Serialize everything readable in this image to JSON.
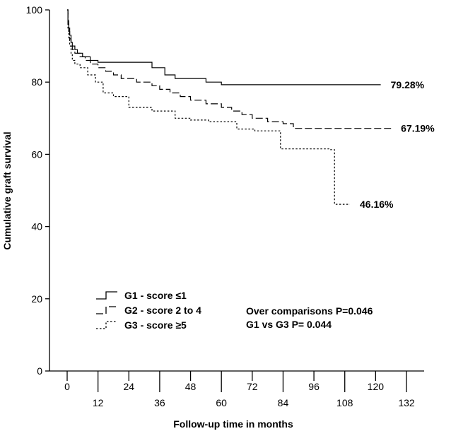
{
  "chart_data": {
    "type": "line",
    "subtype": "kaplan-meier step",
    "title": "",
    "xlabel": "Follow-up time in months",
    "ylabel": "Cumulative graft survival",
    "xlim": [
      -6,
      132
    ],
    "ylim": [
      0,
      100
    ],
    "x_ticks_upper": [
      "0",
      "24",
      "48",
      "72",
      "96",
      "120"
    ],
    "x_ticks_lower": [
      "12",
      "36",
      "60",
      "84",
      "108",
      "132"
    ],
    "y_ticks": [
      "0",
      "20",
      "40",
      "60",
      "80",
      "100"
    ],
    "series": [
      {
        "name": "G1 - score ≤1",
        "style": "solid",
        "points": [
          [
            0,
            100
          ],
          [
            0.3,
            97
          ],
          [
            0.6,
            95
          ],
          [
            1,
            93
          ],
          [
            1.5,
            91
          ],
          [
            2,
            90
          ],
          [
            3,
            89
          ],
          [
            4,
            88
          ],
          [
            6,
            87
          ],
          [
            9,
            86
          ],
          [
            12,
            85.5
          ],
          [
            18,
            85.5
          ],
          [
            24,
            85.5
          ],
          [
            30,
            85.5
          ],
          [
            33,
            84
          ],
          [
            38,
            82
          ],
          [
            42,
            81
          ],
          [
            48,
            81
          ],
          [
            54,
            80
          ],
          [
            60,
            79.28
          ],
          [
            72,
            79.28
          ],
          [
            84,
            79.28
          ],
          [
            96,
            79.28
          ],
          [
            108,
            79.28
          ],
          [
            122,
            79.28
          ]
        ],
        "end_label": "79.28%"
      },
      {
        "name": "G2 - score 2 to 4",
        "style": "dashed",
        "points": [
          [
            0,
            100
          ],
          [
            0.3,
            96
          ],
          [
            0.6,
            94
          ],
          [
            1,
            92
          ],
          [
            1.5,
            90
          ],
          [
            2,
            89
          ],
          [
            3,
            88
          ],
          [
            5,
            87
          ],
          [
            7,
            86
          ],
          [
            9,
            85
          ],
          [
            12,
            84
          ],
          [
            15,
            83
          ],
          [
            18,
            82
          ],
          [
            21,
            81
          ],
          [
            27,
            80
          ],
          [
            33,
            79
          ],
          [
            36,
            78
          ],
          [
            40,
            77
          ],
          [
            44,
            76
          ],
          [
            48,
            75
          ],
          [
            54,
            74
          ],
          [
            60,
            73
          ],
          [
            64,
            72
          ],
          [
            68,
            71
          ],
          [
            72,
            70
          ],
          [
            78,
            69
          ],
          [
            84,
            68.5
          ],
          [
            88,
            67.19
          ],
          [
            96,
            67.19
          ],
          [
            108,
            67.19
          ],
          [
            120,
            67.19
          ],
          [
            126,
            67.19
          ]
        ],
        "end_label": "67.19%"
      },
      {
        "name": "G3 - score ≥5",
        "style": "dotted",
        "points": [
          [
            0,
            100
          ],
          [
            0.3,
            95
          ],
          [
            0.6,
            92
          ],
          [
            1,
            90
          ],
          [
            1.5,
            88
          ],
          [
            2,
            86
          ],
          [
            3,
            85
          ],
          [
            5,
            84
          ],
          [
            8,
            82
          ],
          [
            11,
            80
          ],
          [
            14,
            77
          ],
          [
            18,
            76
          ],
          [
            24,
            73
          ],
          [
            33,
            72
          ],
          [
            42,
            70
          ],
          [
            48,
            69.5
          ],
          [
            55,
            69
          ],
          [
            66,
            67
          ],
          [
            73,
            66.5
          ],
          [
            83,
            61.5
          ],
          [
            92,
            61.5
          ],
          [
            102,
            61.3
          ],
          [
            104,
            46.16
          ],
          [
            110,
            46.16
          ]
        ],
        "end_label": "46.16%"
      }
    ],
    "legend_position": "bottom-left",
    "annotations": [
      "Over comparisons P=0.046",
      "G1 vs G3 P= 0.044"
    ]
  }
}
